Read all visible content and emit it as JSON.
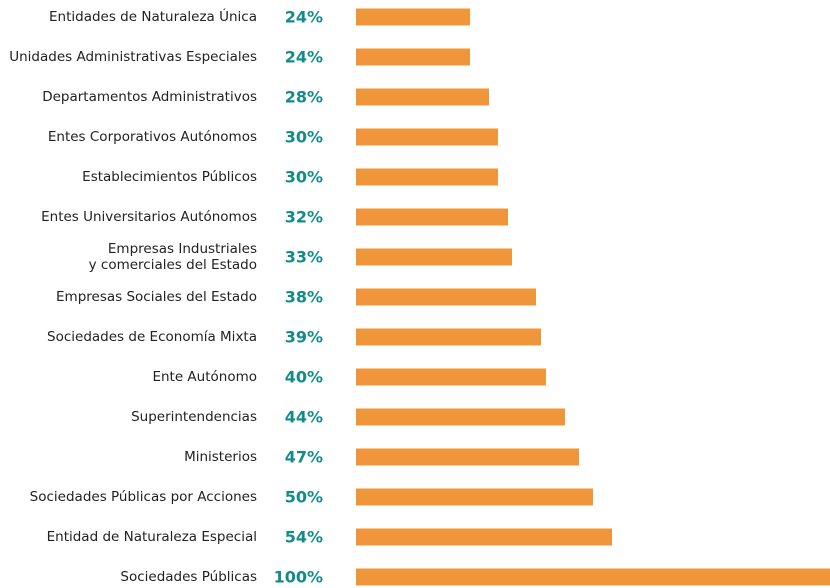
{
  "chart_data": {
    "type": "bar",
    "orientation": "horizontal",
    "categories": [
      "Entidades de Naturaleza Única",
      "Unidades Administrativas Especiales",
      "Departamentos Administrativos",
      "Entes Corporativos Autónomos",
      "Establecimientos Públicos",
      "Entes Universitarios Autónomos",
      "Empresas Industriales\ny comerciales del Estado",
      "Empresas Sociales del Estado",
      "Sociedades de Economía Mixta",
      "Ente Autónomo",
      "Superintendencias",
      "Ministerios",
      "Sociedades Públicas por Acciones",
      "Entidad de Naturaleza Especial",
      "Sociedades Públicas"
    ],
    "values": [
      24,
      24,
      28,
      30,
      30,
      32,
      33,
      38,
      39,
      40,
      44,
      47,
      50,
      54,
      100
    ],
    "value_labels": [
      "24%",
      "24%",
      "28%",
      "30%",
      "30%",
      "32%",
      "33%",
      "38%",
      "39%",
      "40%",
      "44%",
      "47%",
      "50%",
      "54%",
      "100%"
    ],
    "color": "#f0963a",
    "label_color": "#138b8a",
    "xlim": [
      0,
      100
    ]
  }
}
